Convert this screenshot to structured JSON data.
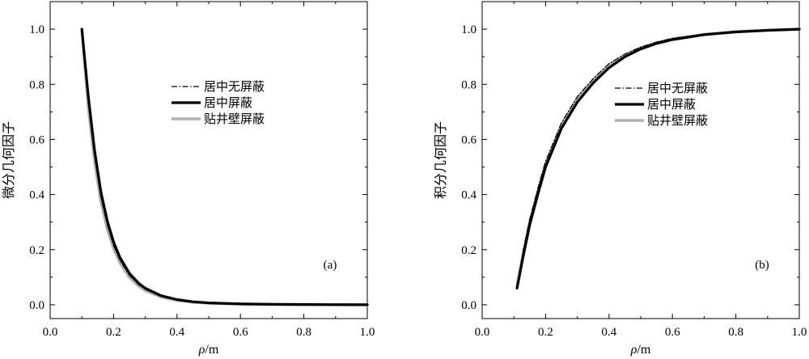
{
  "chart_data": [
    {
      "type": "line",
      "panel_tag": "(a)",
      "xlabel_symbol": "ρ",
      "xlabel_unit": "/m",
      "ylabel": "微分几何因子",
      "xlim": [
        0.0,
        1.0
      ],
      "ylim": [
        -0.05,
        1.1
      ],
      "xticks": [
        "0.0",
        "0.2",
        "0.4",
        "0.6",
        "0.8",
        "1.0"
      ],
      "yticks": [
        "0.0",
        "0.2",
        "0.4",
        "0.6",
        "0.8",
        "1.0"
      ],
      "grid": false,
      "legend_position": "upper-center",
      "x": [
        0.1,
        0.12,
        0.14,
        0.16,
        0.18,
        0.2,
        0.22,
        0.25,
        0.28,
        0.3,
        0.35,
        0.4,
        0.45,
        0.5,
        0.6,
        0.7,
        0.8,
        0.9,
        1.0
      ],
      "series": [
        {
          "name": "居中无屏蔽",
          "style": "dashdot",
          "color": "#000000",
          "values": [
            1.0,
            0.74,
            0.54,
            0.39,
            0.29,
            0.215,
            0.162,
            0.107,
            0.072,
            0.056,
            0.03,
            0.017,
            0.01,
            0.006,
            0.003,
            0.0015,
            0.0008,
            0.0004,
            0.0002
          ]
        },
        {
          "name": "居中屏蔽",
          "style": "solid",
          "color": "#000000",
          "values": [
            1.0,
            0.76,
            0.56,
            0.41,
            0.305,
            0.228,
            0.172,
            0.114,
            0.077,
            0.06,
            0.033,
            0.019,
            0.011,
            0.007,
            0.003,
            0.0016,
            0.0009,
            0.0005,
            0.0002
          ]
        },
        {
          "name": "贴井壁屏蔽",
          "style": "solid",
          "color": "#b0b0b0",
          "values": [
            1.0,
            0.72,
            0.52,
            0.375,
            0.275,
            0.205,
            0.153,
            0.1,
            0.067,
            0.052,
            0.028,
            0.016,
            0.009,
            0.006,
            0.003,
            0.0014,
            0.0008,
            0.0004,
            0.0002
          ]
        }
      ]
    },
    {
      "type": "line",
      "panel_tag": "(b)",
      "xlabel_symbol": "ρ",
      "xlabel_unit": "/m",
      "ylabel": "积分几何因子",
      "xlim": [
        0.0,
        1.0
      ],
      "ylim": [
        -0.05,
        1.1
      ],
      "xticks": [
        "0.0",
        "0.2",
        "0.4",
        "0.6",
        "0.8",
        "1.0"
      ],
      "yticks": [
        "0.0",
        "0.2",
        "0.4",
        "0.6",
        "0.8",
        "1.0"
      ],
      "grid": false,
      "legend_position": "center-right",
      "x": [
        0.11,
        0.13,
        0.15,
        0.18,
        0.2,
        0.25,
        0.3,
        0.35,
        0.4,
        0.45,
        0.5,
        0.55,
        0.6,
        0.7,
        0.8,
        0.9,
        1.0
      ],
      "series": [
        {
          "name": "居中无屏蔽",
          "style": "dashdot",
          "color": "#000000",
          "values": [
            0.07,
            0.2,
            0.31,
            0.44,
            0.52,
            0.66,
            0.755,
            0.82,
            0.875,
            0.91,
            0.935,
            0.953,
            0.966,
            0.982,
            0.991,
            0.996,
            1.0
          ]
        },
        {
          "name": "居中屏蔽",
          "style": "solid",
          "color": "#000000",
          "values": [
            0.06,
            0.18,
            0.29,
            0.42,
            0.5,
            0.64,
            0.735,
            0.805,
            0.86,
            0.9,
            0.928,
            0.948,
            0.962,
            0.98,
            0.99,
            0.996,
            1.0
          ]
        },
        {
          "name": "贴井壁屏蔽",
          "style": "solid",
          "color": "#b0b0b0",
          "values": [
            0.07,
            0.19,
            0.3,
            0.43,
            0.51,
            0.65,
            0.745,
            0.815,
            0.867,
            0.905,
            0.932,
            0.951,
            0.965,
            0.981,
            0.991,
            0.996,
            1.0
          ]
        }
      ]
    }
  ]
}
